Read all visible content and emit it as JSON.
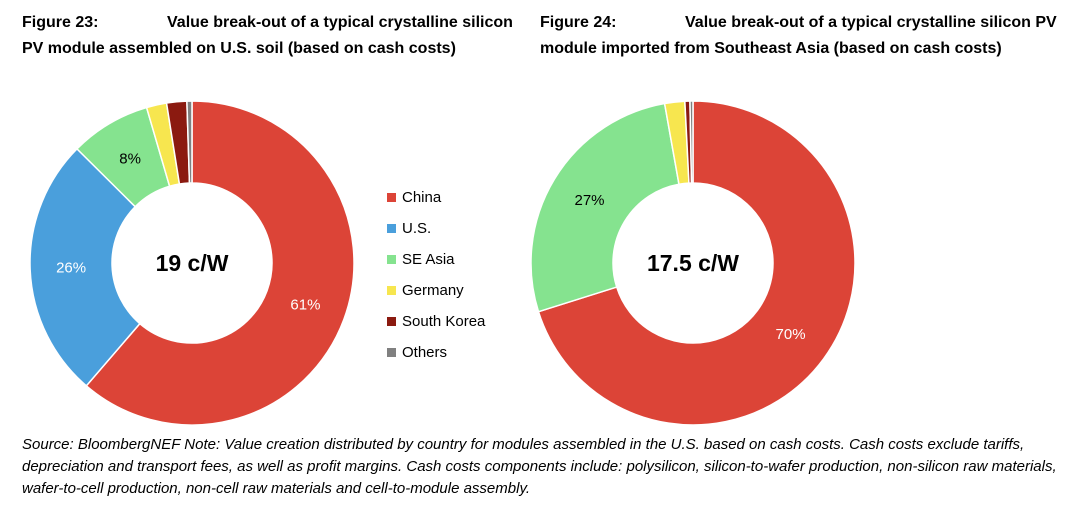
{
  "figures": [
    {
      "number": "Figure 23:",
      "title": "Value break-out of a typical crystalline silicon PV module assembled on U.S. soil (based on cash costs)",
      "center_label": "19 c/W"
    },
    {
      "number": "Figure 24:",
      "title": "Value break-out of a typical crystalline silicon PV module imported from Southeast Asia (based on cash costs)",
      "center_label": "17.5 c/W"
    }
  ],
  "legend": [
    {
      "label": "China",
      "color": "#dc4437"
    },
    {
      "label": "U.S.",
      "color": "#4a9fdc"
    },
    {
      "label": "SE Asia",
      "color": "#85e38f"
    },
    {
      "label": "Germany",
      "color": "#f7e64f"
    },
    {
      "label": "South Korea",
      "color": "#8b1a10"
    },
    {
      "label": "Others",
      "color": "#808080"
    }
  ],
  "chart_data": [
    {
      "type": "pie",
      "title": "Figure 23: Value break-out of a typical crystalline silicon PV module assembled on U.S. soil (based on cash costs)",
      "center_label": "19 c/W",
      "categories": [
        "China",
        "U.S.",
        "SE Asia",
        "Germany",
        "South Korea",
        "Others"
      ],
      "values": [
        61,
        26,
        8,
        2,
        2,
        0.5
      ],
      "data_labels": [
        "61%",
        "26%",
        "8%",
        "",
        "",
        ""
      ],
      "colors": [
        "#dc4437",
        "#4a9fdc",
        "#85e38f",
        "#f7e64f",
        "#8b1a10",
        "#808080"
      ],
      "legend_position": "right"
    },
    {
      "type": "pie",
      "title": "Figure 24: Value break-out of a typical crystalline silicon PV module imported from Southeast Asia (based on cash costs)",
      "center_label": "17.5 c/W",
      "categories": [
        "China",
        "U.S.",
        "SE Asia",
        "Germany",
        "South Korea",
        "Others"
      ],
      "values": [
        70,
        0,
        27,
        2,
        0.5,
        0.3
      ],
      "data_labels": [
        "70%",
        "",
        "27%",
        "",
        "",
        ""
      ],
      "colors": [
        "#dc4437",
        "#4a9fdc",
        "#85e38f",
        "#f7e64f",
        "#8b1a10",
        "#808080"
      ],
      "legend_position": "left"
    }
  ],
  "source_note": "Source: BloombergNEF Note: Value creation distributed by country for modules assembled in the U.S. based on cash costs. Cash costs exclude tariffs, depreciation and transport fees, as well as profit margins. Cash costs components include: polysilicon, silicon-to-wafer production, non-silicon raw materials, wafer-to-cell production, non-cell raw materials and cell-to-module assembly."
}
